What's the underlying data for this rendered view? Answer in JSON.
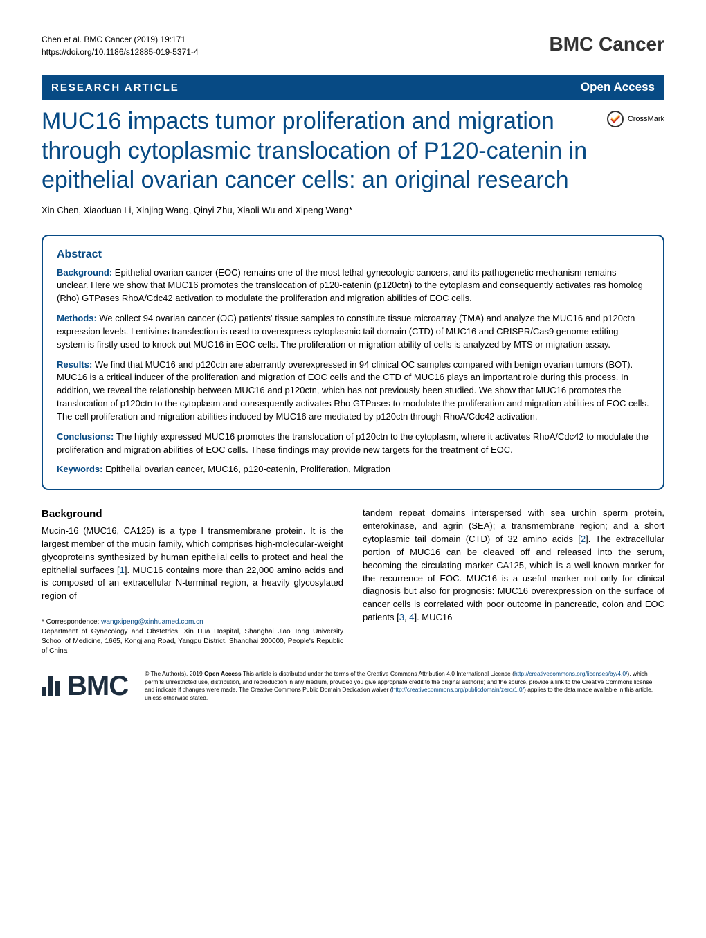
{
  "header": {
    "citation": "Chen et al. BMC Cancer        (2019) 19:171",
    "doi": "https://doi.org/10.1186/s12885-019-5371-4",
    "journal": "BMC Cancer"
  },
  "article_type_bar": {
    "type": "RESEARCH ARTICLE",
    "access": "Open Access",
    "background_color": "#074a84",
    "text_color": "#ffffff"
  },
  "crossmark": {
    "label": "CrossMark"
  },
  "title": "MUC16 impacts tumor proliferation and migration through cytoplasmic translocation of P120-catenin in epithelial ovarian cancer cells: an original research",
  "title_color": "#074a84",
  "authors": "Xin Chen, Xiaoduan Li, Xinjing Wang, Qinyi Zhu, Xiaoli Wu and Xipeng Wang*",
  "abstract": {
    "heading": "Abstract",
    "sections": [
      {
        "label": "Background: ",
        "text": "Epithelial ovarian cancer (EOC) remains one of the most lethal gynecologic cancers, and its pathogenetic mechanism remains unclear. Here we show that MUC16 promotes the translocation of p120-catenin (p120ctn) to the cytoplasm and consequently activates ras homolog (Rho) GTPases RhoA/Cdc42 activation to modulate the proliferation and migration abilities of EOC cells."
      },
      {
        "label": "Methods: ",
        "text": "We collect 94 ovarian cancer (OC) patients' tissue samples to constitute tissue microarray (TMA) and analyze the MUC16 and p120ctn expression levels. Lentivirus transfection is used to overexpress cytoplasmic tail domain (CTD) of MUC16 and CRISPR/Cas9 genome-editing system is firstly used to knock out MUC16 in EOC cells. The proliferation or migration ability of cells is analyzed by MTS or migration assay."
      },
      {
        "label": "Results: ",
        "text": "We find that MUC16 and p120ctn are aberrantly overexpressed in 94 clinical OC samples compared with benign ovarian tumors (BOT). MUC16 is a critical inducer of the proliferation and migration of EOC cells and the CTD of MUC16 plays an important role during this process. In addition, we reveal the relationship between MUC16 and p120ctn, which has not previously been studied. We show that MUC16 promotes the translocation of p120ctn to the cytoplasm and consequently activates Rho GTPases to modulate the proliferation and migration abilities of EOC cells. The cell proliferation and migration abilities induced by MUC16 are mediated by p120ctn through RhoA/Cdc42 activation."
      },
      {
        "label": "Conclusions: ",
        "text": "The highly expressed MUC16 promotes the translocation of p120ctn to the cytoplasm, where it activates RhoA/Cdc42 to modulate the proliferation and migration abilities of EOC cells. These findings may provide new targets for the treatment of EOC."
      }
    ],
    "keywords_label": "Keywords: ",
    "keywords": "Epithelial ovarian cancer, MUC16, p120-catenin, Proliferation, Migration"
  },
  "body": {
    "heading": "Background",
    "col1_part1": "Mucin-16 (MUC16, CA125) is a type I transmembrane protein. It is the largest member of the mucin family, which comprises high-molecular-weight glycoproteins synthesized by human epithelial cells to protect and heal the epithelial surfaces [",
    "col1_ref1": "1",
    "col1_part2": "]. MUC16 contains more than 22,000 amino acids and is composed of an extracellular N-terminal region, a heavily glycosylated region of",
    "col2_part1": "tandem repeat domains interspersed with sea urchin sperm protein, enterokinase, and agrin (SEA); a transmembrane region; and a short cytoplasmic tail domain (CTD) of 32 amino acids [",
    "col2_ref2": "2",
    "col2_part2": "]. The extracellular portion of MUC16 can be cleaved off and released into the serum, becoming the circulating marker CA125, which is a well-known marker for the recurrence of EOC. MUC16 is a useful marker not only for clinical diagnosis but also for prognosis: MUC16 overexpression on the surface of cancer cells is correlated with poor outcome in pancreatic, colon and EOC patients [",
    "col2_ref3": "3",
    "col2_ref_sep": ", ",
    "col2_ref4": "4",
    "col2_part3": "]. MUC16"
  },
  "correspondence": {
    "label": "* Correspondence: ",
    "email": "wangxipeng@xinhuamed.com.cn",
    "affiliation": "Department of Gynecology and Obstetrics, Xin Hua Hospital, Shanghai Jiao Tong University School of Medicine, 1665, Kongjiang Road, Yangpu District, Shanghai 200000, People's Republic of China"
  },
  "footer": {
    "bmc_text": "BMC",
    "license_part1": "© The Author(s). 2019 ",
    "license_bold": "Open Access",
    "license_part2": " This article is distributed under the terms of the Creative Commons Attribution 4.0 International License (",
    "license_link1": "http://creativecommons.org/licenses/by/4.0/",
    "license_part3": "), which permits unrestricted use, distribution, and reproduction in any medium, provided you give appropriate credit to the original author(s) and the source, provide a link to the Creative Commons license, and indicate if changes were made. The Creative Commons Public Domain Dedication waiver (",
    "license_link2": "http://creativecommons.org/publicdomain/zero/1.0/",
    "license_part4": ") applies to the data made available in this article, unless otherwise stated."
  },
  "colors": {
    "primary": "#074a84",
    "text": "#000000",
    "brand_dark": "#1d2d3e"
  }
}
